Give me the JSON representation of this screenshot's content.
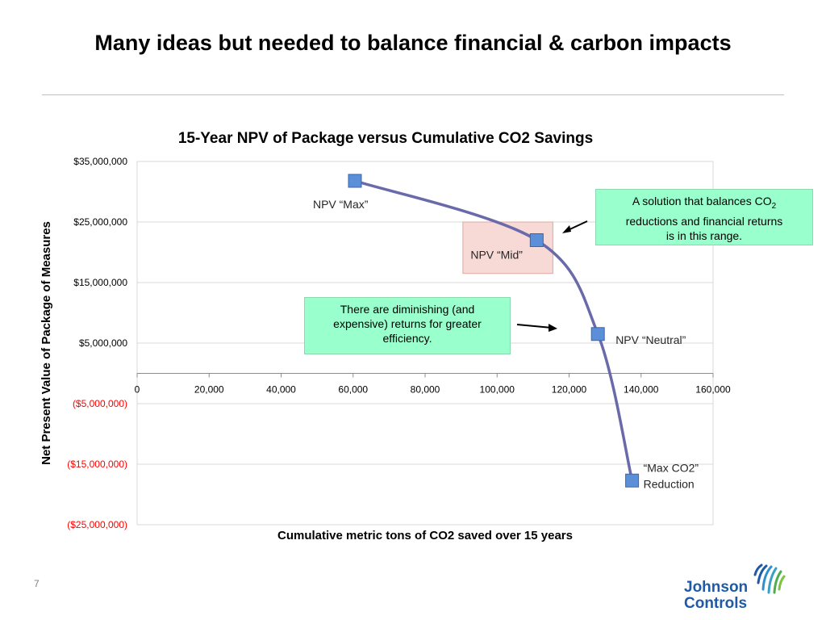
{
  "slide": {
    "title": "Many ideas but needed to balance financial & carbon impacts",
    "page_number": "7",
    "logo": {
      "line1": "Johnson",
      "line2": "Controls",
      "brand_color": "#1f5aa6",
      "mark_color": "#4cae4c"
    }
  },
  "callouts": {
    "range_line1": "A solution that balances CO",
    "range_sub": "2",
    "range_line2": "reductions and financial returns",
    "range_line3": "is in this range.",
    "returns_line1": "There are diminishing (and",
    "returns_line2": "expensive) returns for greater",
    "returns_line3": "efficiency.",
    "fill_color": "#99ffcc"
  },
  "chart_data": {
    "type": "line",
    "title": "15-Year NPV of Package versus Cumulative CO2 Savings",
    "xlabel": "Cumulative metric tons of CO2 saved over 15 years",
    "ylabel": "Net Present Value of Package of Measures",
    "xlim": [
      0,
      160000
    ],
    "ylim": [
      -25000000,
      35000000
    ],
    "x_ticks": [
      0,
      20000,
      40000,
      60000,
      80000,
      100000,
      120000,
      140000,
      160000
    ],
    "x_tick_labels": [
      "0",
      "20,000",
      "40,000",
      "60,000",
      "80,000",
      "100,000",
      "120,000",
      "140,000",
      "160,000"
    ],
    "y_ticks": [
      35000000,
      25000000,
      15000000,
      5000000,
      -5000000,
      -15000000,
      -25000000
    ],
    "y_tick_labels": [
      "$35,000,000",
      "$25,000,000",
      "$15,000,000",
      "$5,000,000",
      "($5,000,000)",
      "($15,000,000)",
      "($25,000,000)"
    ],
    "negative_label_color": "#ff0000",
    "grid": true,
    "line_color": "#6a6aaa",
    "marker_color": "#5b8fd8",
    "points": [
      {
        "x": 60500,
        "y": 31800000,
        "label": "NPV “Max”"
      },
      {
        "x": 111000,
        "y": 22000000,
        "label": "NPV “Mid”"
      },
      {
        "x": 128000,
        "y": 6500000,
        "label": "NPV “Neutral”"
      },
      {
        "x": 137500,
        "y": -17700000,
        "label": "“Max CO2”",
        "label2": "Reduction"
      }
    ],
    "highlight_range": {
      "x": [
        90500,
        115500
      ],
      "y": [
        16500000,
        25000000
      ],
      "color": "#f7d9d6"
    }
  }
}
